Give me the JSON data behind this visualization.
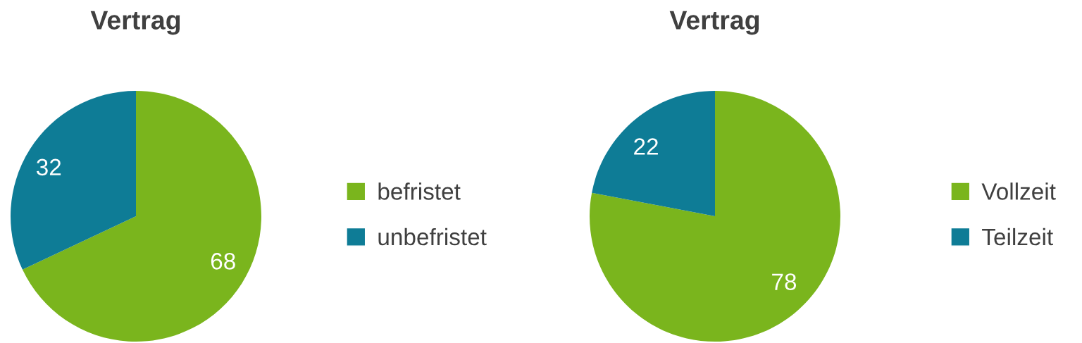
{
  "chart_data": [
    {
      "type": "pie",
      "title": "Vertrag",
      "categories": [
        "befristet",
        "unbefristet"
      ],
      "values": [
        68,
        32
      ],
      "colors": [
        "#7ab51d",
        "#0e7c96"
      ],
      "data_labels": true,
      "legend": "right"
    },
    {
      "type": "pie",
      "title": "Vertrag",
      "categories": [
        "Vollzeit",
        "Teilzeit"
      ],
      "values": [
        78,
        22
      ],
      "colors": [
        "#7ab51d",
        "#0e7c96"
      ],
      "data_labels": true,
      "legend": "right"
    }
  ]
}
